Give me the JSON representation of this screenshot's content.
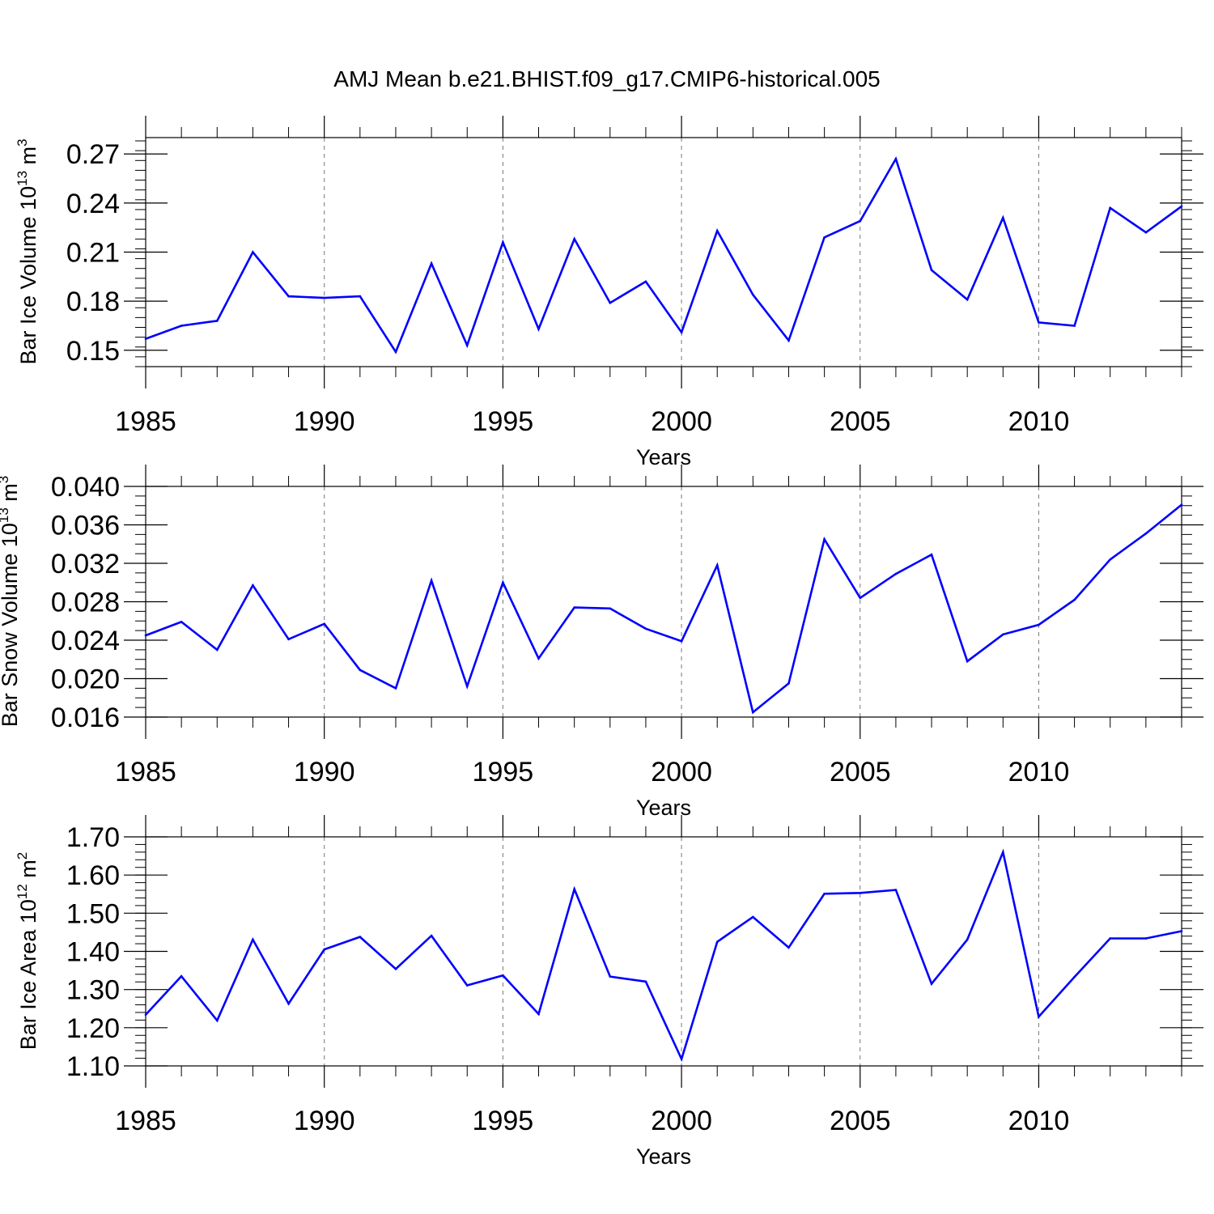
{
  "title": "AMJ Mean b.e21.BHIST.f09_g17.CMIP6-historical.005",
  "chart_data": [
    {
      "type": "line",
      "title": "AMJ Mean b.e21.BHIST.f09_g17.CMIP6-historical.005",
      "xlabel": "Years",
      "ylabel": {
        "text": "Bar Ice Volume 10",
        "sup1": "13",
        "mid": " m",
        "sup2": "3"
      },
      "xlim": [
        1985,
        2014
      ],
      "ylim": [
        0.14,
        0.28
      ],
      "yticks": [
        "0.15",
        "0.18",
        "0.21",
        "0.24",
        "0.27"
      ],
      "xticks": [
        "1985",
        "1990",
        "1995",
        "2000",
        "2005",
        "2010"
      ],
      "color": "#0000ff",
      "x": [
        1985,
        1986,
        1987,
        1988,
        1989,
        1990,
        1991,
        1992,
        1993,
        1994,
        1995,
        1996,
        1997,
        1998,
        1999,
        2000,
        2001,
        2002,
        2003,
        2004,
        2005,
        2006,
        2007,
        2008,
        2009,
        2010,
        2011,
        2012,
        2013,
        2014
      ],
      "values": [
        0.157,
        0.165,
        0.168,
        0.21,
        0.183,
        0.182,
        0.183,
        0.149,
        0.203,
        0.153,
        0.216,
        0.163,
        0.218,
        0.179,
        0.192,
        0.161,
        0.223,
        0.184,
        0.156,
        0.219,
        0.229,
        0.267,
        0.199,
        0.181,
        0.231,
        0.167,
        0.165,
        0.237,
        0.222,
        0.238
      ]
    },
    {
      "type": "line",
      "xlabel": "Years",
      "ylabel": {
        "text": "Bar Snow Volume 10",
        "sup1": "13",
        "mid": " m",
        "sup2": "3"
      },
      "xlim": [
        1985,
        2014
      ],
      "ylim": [
        0.016,
        0.04
      ],
      "yticks": [
        "0.016",
        "0.020",
        "0.024",
        "0.028",
        "0.032",
        "0.036",
        "0.040"
      ],
      "xticks": [
        "1985",
        "1990",
        "1995",
        "2000",
        "2005",
        "2010"
      ],
      "color": "#0000ff",
      "x": [
        1985,
        1986,
        1987,
        1988,
        1989,
        1990,
        1991,
        1992,
        1993,
        1994,
        1995,
        1996,
        1997,
        1998,
        1999,
        2000,
        2001,
        2002,
        2003,
        2004,
        2005,
        2006,
        2007,
        2008,
        2009,
        2010,
        2011,
        2012,
        2013,
        2014
      ],
      "values": [
        0.0245,
        0.0259,
        0.023,
        0.0297,
        0.0241,
        0.0257,
        0.0209,
        0.019,
        0.0302,
        0.0192,
        0.03,
        0.0221,
        0.0274,
        0.0273,
        0.0252,
        0.0239,
        0.0318,
        0.0165,
        0.0195,
        0.0345,
        0.0284,
        0.0309,
        0.0329,
        0.0218,
        0.0246,
        0.0256,
        0.0282,
        0.0324,
        0.0351,
        0.0381
      ]
    },
    {
      "type": "line",
      "xlabel": "Years",
      "ylabel": {
        "text": "Bar Ice Area 10",
        "sup1": "12",
        "mid": " m",
        "sup2": "2"
      },
      "xlim": [
        1985,
        2014
      ],
      "ylim": [
        1.1,
        1.7
      ],
      "yticks": [
        "1.10",
        "1.20",
        "1.30",
        "1.40",
        "1.50",
        "1.60",
        "1.70"
      ],
      "xticks": [
        "1985",
        "1990",
        "1995",
        "2000",
        "2005",
        "2010"
      ],
      "color": "#0000ff",
      "x": [
        1985,
        1986,
        1987,
        1988,
        1989,
        1990,
        1991,
        1992,
        1993,
        1994,
        1995,
        1996,
        1997,
        1998,
        1999,
        2000,
        2001,
        2002,
        2003,
        2004,
        2005,
        2006,
        2007,
        2008,
        2009,
        2010,
        2011,
        2012,
        2013,
        2014
      ],
      "values": [
        1.234,
        1.335,
        1.219,
        1.431,
        1.263,
        1.405,
        1.438,
        1.354,
        1.441,
        1.311,
        1.337,
        1.236,
        1.563,
        1.334,
        1.321,
        1.118,
        1.425,
        1.49,
        1.41,
        1.551,
        1.553,
        1.561,
        1.315,
        1.431,
        1.66,
        1.229,
        1.333,
        1.434,
        1.434,
        1.453
      ]
    }
  ]
}
